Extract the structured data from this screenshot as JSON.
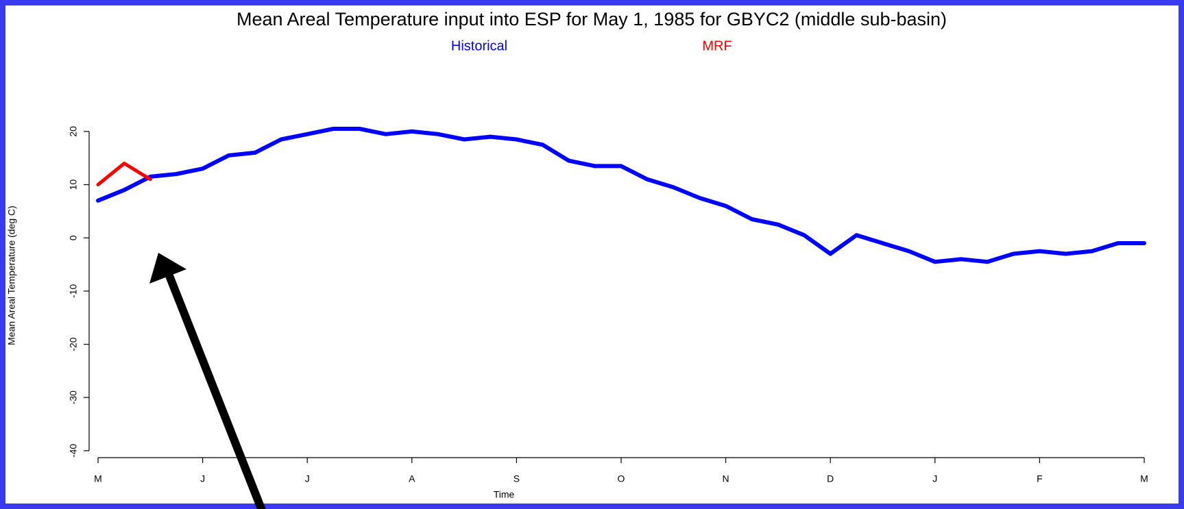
{
  "chart_data": {
    "type": "line",
    "title": "Mean Areal Temperature input into ESP for May 1, 1985 for  GBYC2 (middle sub-basin)",
    "x_label": "Time",
    "y_label": "Mean Areal Temperature (deg C)",
    "categories": [
      "M",
      null,
      null,
      null,
      "J",
      null,
      null,
      null,
      "J",
      null,
      null,
      null,
      "A",
      null,
      null,
      null,
      "S",
      null,
      null,
      null,
      "O",
      null,
      null,
      null,
      "N",
      null,
      null,
      null,
      "D",
      null,
      null,
      null,
      "J",
      null,
      null,
      null,
      "F",
      null,
      null,
      null,
      "M"
    ],
    "series": [
      {
        "name": "Historical",
        "color": "#0000ff",
        "values": [
          7,
          9,
          11.5,
          12,
          13,
          15.5,
          16,
          18.5,
          19.5,
          20.5,
          20.5,
          19.5,
          20,
          19.5,
          18.5,
          19,
          18.5,
          17.5,
          14.5,
          13.5,
          13.5,
          11,
          9.5,
          7.5,
          6,
          3.5,
          2.5,
          0.5,
          -3,
          0.5,
          -1,
          -2.5,
          -4.5,
          -4,
          -4.5,
          -3,
          -2.5,
          -3,
          -2.5,
          -1,
          -1
        ]
      },
      {
        "name": "MRF",
        "color": "#ff0000",
        "values": [
          10,
          14,
          11,
          null,
          null,
          null,
          null,
          null,
          null,
          null,
          null,
          null,
          null,
          null,
          null,
          null,
          null,
          null,
          null,
          null,
          null,
          null,
          null,
          null,
          null,
          null,
          null,
          null,
          null,
          null,
          null,
          null,
          null,
          null,
          null,
          null,
          null,
          null,
          null,
          null,
          null
        ]
      }
    ],
    "ylim": [
      -41.3,
      27
    ],
    "yticks": [
      -40,
      -30,
      -20,
      -10,
      0,
      10,
      20
    ],
    "grid": false
  }
}
